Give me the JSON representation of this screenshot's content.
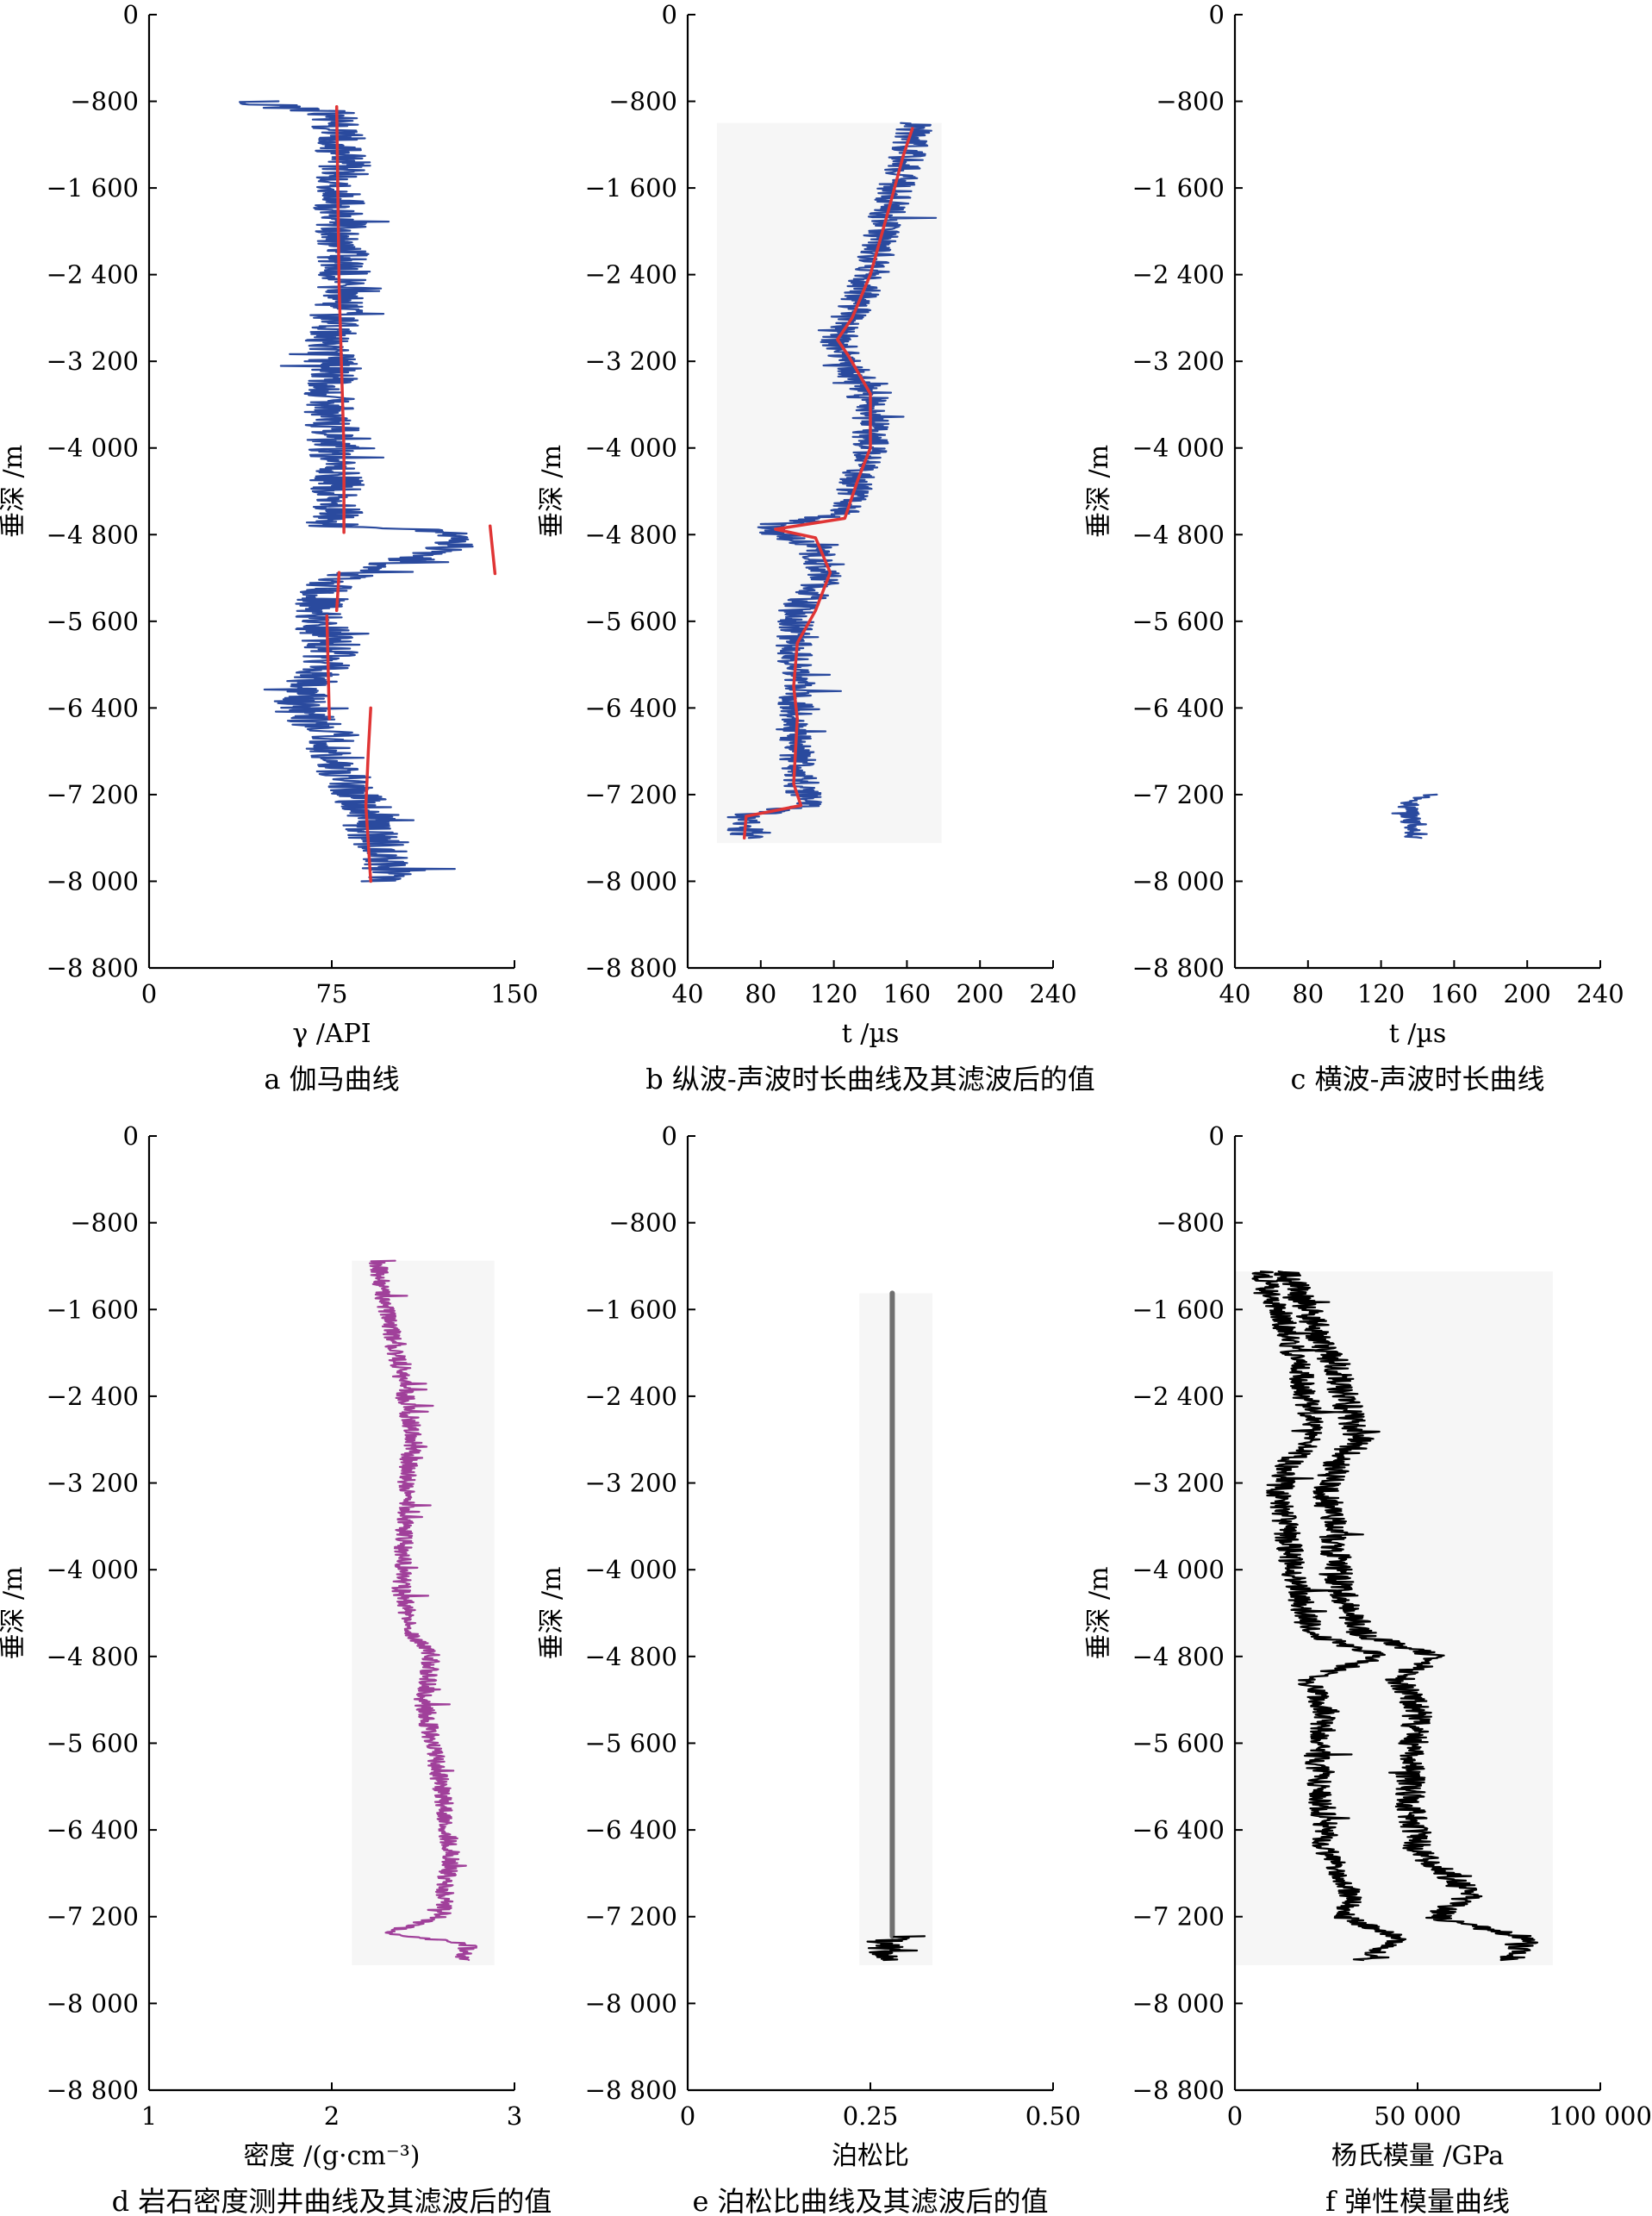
{
  "chart_data": [
    {
      "id": "a",
      "type": "line",
      "caption": "a  伽马曲线",
      "xlabel": "γ /API",
      "ylabel": "垂深 /m",
      "xlim": [
        0,
        150
      ],
      "ylim": [
        -8800,
        0
      ],
      "xticks": [
        0,
        75,
        150
      ],
      "xtick_labels": [
        "0",
        "75",
        "150"
      ],
      "yticks": [
        0,
        -800,
        -1600,
        -2400,
        -3200,
        -4000,
        -4800,
        -5600,
        -6400,
        -7200,
        -8000,
        -8800
      ],
      "ytick_labels": [
        "0",
        "−800",
        "−1 600",
        "−2 400",
        "−3 200",
        "−4 000",
        "−4 800",
        "−5 600",
        "−6 400",
        "−7 200",
        "−8 000",
        "−8 800"
      ],
      "series": [
        {
          "color": "#2a4a9e",
          "style": "noisy",
          "noise": 11,
          "x": [
            45,
            55,
            76,
            80,
            78,
            80,
            76,
            75,
            74,
            76,
            78,
            75,
            76,
            120,
            125,
            115,
            90,
            80,
            72,
            70,
            75,
            65,
            60,
            72,
            80,
            88,
            92,
            90,
            95,
            97
          ],
          "y": [
            -800,
            -860,
            -900,
            -1400,
            -2000,
            -2400,
            -2800,
            -3000,
            -3500,
            -4000,
            -4500,
            -4700,
            -4720,
            -4760,
            -4900,
            -5000,
            -5100,
            -5200,
            -5300,
            -5600,
            -5900,
            -6200,
            -6400,
            -6600,
            -7000,
            -7300,
            -7350,
            -7500,
            -7700,
            -8000
          ]
        },
        {
          "color": "#e03535",
          "style": "line",
          "x": [
            77,
            78,
            80,
            80
          ],
          "y": [
            -850,
            -2500,
            -4000,
            -4780
          ]
        },
        {
          "color": "#e03535",
          "style": "line",
          "x": [
            140,
            142
          ],
          "y": [
            -4720,
            -5160
          ]
        },
        {
          "color": "#e03535",
          "style": "line",
          "x": [
            78,
            77
          ],
          "y": [
            -5150,
            -5500
          ]
        },
        {
          "color": "#e03535",
          "style": "line",
          "x": [
            73,
            74
          ],
          "y": [
            -5550,
            -6500
          ]
        },
        {
          "color": "#e03535",
          "style": "line",
          "x": [
            91,
            90,
            89,
            91
          ],
          "y": [
            -6400,
            -6800,
            -7300,
            -8000
          ]
        }
      ]
    },
    {
      "id": "b",
      "type": "line",
      "caption": "b  纵波-声波时长曲线及其滤波后的值",
      "xlabel": "t /µs",
      "ylabel": "垂深 /m",
      "xlim": [
        40,
        240
      ],
      "ylim": [
        -8800,
        0
      ],
      "xticks": [
        40,
        80,
        120,
        160,
        200,
        240
      ],
      "xtick_labels": [
        "40",
        "80",
        "120",
        "160",
        "200",
        "240"
      ],
      "yticks": [
        0,
        -800,
        -1600,
        -2400,
        -3200,
        -4000,
        -4800,
        -5600,
        -6400,
        -7200,
        -8000,
        -8800
      ],
      "ytick_labels": [
        "0",
        "−800",
        "−1 600",
        "−2 400",
        "−3 200",
        "−4 000",
        "−4 800",
        "−5 600",
        "−6 400",
        "−7 200",
        "−8 000",
        "−8 800"
      ],
      "series": [
        {
          "color": "#2a4a9e",
          "style": "noisy",
          "noise": 10,
          "x": [
            165,
            160,
            150,
            140,
            128,
            122,
            130,
            140,
            140,
            133,
            128,
            85,
            90,
            110,
            115,
            100,
            98,
            100,
            98,
            100,
            105,
            70,
            72
          ],
          "y": [
            -1000,
            -1300,
            -1800,
            -2400,
            -2800,
            -3000,
            -3300,
            -3500,
            -4000,
            -4300,
            -4600,
            -4720,
            -4800,
            -4900,
            -5200,
            -5500,
            -5800,
            -6200,
            -6500,
            -6900,
            -7300,
            -7400,
            -7600
          ]
        },
        {
          "color": "#e03535",
          "style": "line",
          "x": [
            163,
            158,
            150,
            140,
            130,
            122,
            128,
            140,
            140,
            133,
            126,
            88,
            110,
            118,
            110,
            100,
            98,
            100,
            99,
            98,
            102,
            72,
            71
          ],
          "y": [
            -1050,
            -1300,
            -1800,
            -2400,
            -2800,
            -3000,
            -3150,
            -3500,
            -4000,
            -4300,
            -4650,
            -4750,
            -4830,
            -5150,
            -5500,
            -5800,
            -6200,
            -6500,
            -6800,
            -7100,
            -7300,
            -7400,
            -7600
          ]
        }
      ]
    },
    {
      "id": "c",
      "type": "line",
      "caption": "c  横波-声波时长曲线",
      "xlabel": "t /µs",
      "ylabel": "垂深 /m",
      "xlim": [
        40,
        240
      ],
      "ylim": [
        -8800,
        0
      ],
      "xticks": [
        40,
        80,
        120,
        160,
        200,
        240
      ],
      "xtick_labels": [
        "40",
        "80",
        "120",
        "160",
        "200",
        "240"
      ],
      "yticks": [
        0,
        -800,
        -1600,
        -2400,
        -3200,
        -4000,
        -4800,
        -5600,
        -6400,
        -7200,
        -8000,
        -8800
      ],
      "ytick_labels": [
        "0",
        "−800",
        "−1 600",
        "−2 400",
        "−3 200",
        "−4 000",
        "−4 800",
        "−5 600",
        "−6 400",
        "−7 200",
        "−8 000",
        "−8 800"
      ],
      "series": [
        {
          "color": "#2a4a9e",
          "style": "noisy",
          "noise": 6,
          "x": [
            150,
            140,
            135,
            137,
            135,
            138
          ],
          "y": [
            -7200,
            -7240,
            -7300,
            -7400,
            -7500,
            -7600
          ]
        }
      ]
    },
    {
      "id": "d",
      "type": "line",
      "caption": "d  岩石密度测井曲线及其滤波后的值",
      "xlabel": "密度 /(g·cm⁻³)",
      "ylabel": "垂深 /m",
      "xlim": [
        1,
        3
      ],
      "ylim": [
        -8800,
        0
      ],
      "xticks": [
        1,
        2,
        3
      ],
      "xtick_labels": [
        "1",
        "2",
        "3"
      ],
      "yticks": [
        0,
        -800,
        -1600,
        -2400,
        -3200,
        -4000,
        -4800,
        -5600,
        -6400,
        -7200,
        -8000,
        -8800
      ],
      "ytick_labels": [
        "0",
        "−800",
        "−1 600",
        "−2 400",
        "−3 200",
        "−4 000",
        "−4 800",
        "−5 600",
        "−6 400",
        "−7 200",
        "−8 000",
        "−8 800"
      ],
      "series": [
        {
          "color": "#a0409a",
          "style": "noisy",
          "noise": 0.05,
          "x": [
            2.25,
            2.3,
            2.4,
            2.45,
            2.42,
            2.4,
            2.38,
            2.45,
            2.55,
            2.5,
            2.55,
            2.6,
            2.65,
            2.6,
            2.3,
            2.75,
            2.72
          ],
          "y": [
            -1150,
            -1600,
            -2400,
            -2800,
            -3000,
            -3500,
            -4200,
            -4600,
            -4800,
            -5200,
            -5600,
            -6000,
            -6600,
            -7200,
            -7350,
            -7450,
            -7600
          ]
        }
      ]
    },
    {
      "id": "e",
      "type": "line",
      "caption": "e  泊松比曲线及其滤波后的值",
      "xlabel": "泊松比",
      "ylabel": "垂深 /m",
      "xlim": [
        0,
        0.5
      ],
      "ylim": [
        -8800,
        0
      ],
      "xticks": [
        0,
        0.25,
        0.5
      ],
      "xtick_labels": [
        "0",
        "0.25",
        "0.50"
      ],
      "yticks": [
        0,
        -800,
        -1600,
        -2400,
        -3200,
        -4000,
        -4800,
        -5600,
        -6400,
        -7200,
        -8000,
        -8800
      ],
      "ytick_labels": [
        "0",
        "−800",
        "−1 600",
        "−2 400",
        "−3 200",
        "−4 000",
        "−4 800",
        "−5 600",
        "−6 400",
        "−7 200",
        "−8 000",
        "−8 800"
      ],
      "series": [
        {
          "color": "#707070",
          "style": "line",
          "width": 6,
          "x": [
            0.28,
            0.28
          ],
          "y": [
            -1450,
            -7380
          ]
        },
        {
          "color": "#000000",
          "style": "noisy",
          "noise": 0.025,
          "x": [
            0.3,
            0.27,
            0.27,
            0.27
          ],
          "y": [
            -7380,
            -7420,
            -7500,
            -7600
          ]
        }
      ]
    },
    {
      "id": "f",
      "type": "line",
      "caption": "f  弹性模量曲线",
      "xlabel": "杨氏模量 /GPa",
      "ylabel": "垂深 /m",
      "xlim": [
        0,
        100000
      ],
      "ylim": [
        -8800,
        0
      ],
      "xticks": [
        0,
        50000,
        100000
      ],
      "xtick_labels": [
        "0",
        "50 000",
        "100 000"
      ],
      "yticks": [
        0,
        -800,
        -1600,
        -2400,
        -3200,
        -4000,
        -4800,
        -5600,
        -6400,
        -7200,
        -8000,
        -8800
      ],
      "ytick_labels": [
        "0",
        "−800",
        "−1 600",
        "−2 400",
        "−3 200",
        "−4 000",
        "−4 800",
        "−5 600",
        "−6 400",
        "−7 200",
        "−8 000",
        "−8 800"
      ],
      "series": [
        {
          "color": "#000000",
          "style": "noisy",
          "noise": 3500,
          "x": [
            7000,
            12000,
            18000,
            22000,
            15000,
            12000,
            14000,
            16000,
            18000,
            20000,
            22000,
            40000,
            20000,
            25000,
            22000,
            24000,
            25000,
            32000,
            30000,
            45000,
            35000
          ],
          "y": [
            -1250,
            -1600,
            -2200,
            -2800,
            -3000,
            -3300,
            -3600,
            -4000,
            -4300,
            -4500,
            -4600,
            -4800,
            -5000,
            -5300,
            -5800,
            -6200,
            -6600,
            -7000,
            -7200,
            -7400,
            -7600
          ]
        },
        {
          "color": "#000000",
          "style": "noisy",
          "noise": 4000,
          "x": [
            14000,
            20000,
            28000,
            34000,
            28000,
            25000,
            27000,
            28000,
            30000,
            33000,
            35000,
            55000,
            45000,
            50000,
            48000,
            48000,
            50000,
            65000,
            55000,
            80000,
            75000
          ],
          "y": [
            -1250,
            -1600,
            -2200,
            -2800,
            -3000,
            -3300,
            -3600,
            -4000,
            -4300,
            -4500,
            -4600,
            -4800,
            -5000,
            -5300,
            -5800,
            -6200,
            -6600,
            -7000,
            -7200,
            -7400,
            -7600
          ]
        }
      ]
    }
  ]
}
